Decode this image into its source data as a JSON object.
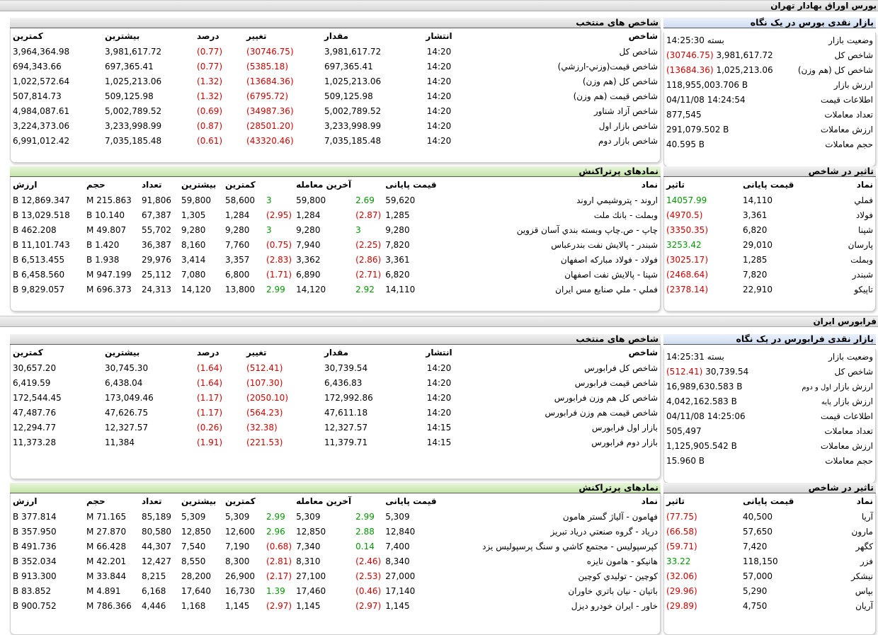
{
  "tse": {
    "title": "بورس اوراق بهادار تهران",
    "overview": {
      "title": "بازار نقدی بورس در یک نگاه",
      "rows": [
        {
          "label": "وضعیت بازار",
          "value": "بسته 14:25:30",
          "change": ""
        },
        {
          "label": "شاخص کل",
          "value": "3,981,617.72",
          "change": "(30746.75)"
        },
        {
          "label": "شاخص کل (هم وزن)",
          "value": "1,025,213.06",
          "change": "(13684.36)"
        },
        {
          "label": "ارزش بازار",
          "value": "118,955,003.706 B",
          "change": ""
        },
        {
          "label": "اطلاعات قیمت",
          "value": "04/11/08 14:24:54",
          "change": ""
        },
        {
          "label": "تعداد معاملات",
          "value": "877,545",
          "change": ""
        },
        {
          "label": "ارزش معاملات",
          "value": "291,079.502 B",
          "change": ""
        },
        {
          "label": "حجم معاملات",
          "value": "40.595 B",
          "change": ""
        }
      ]
    },
    "indices": {
      "title": "شاخص های منتخب",
      "headers": [
        "شاخص",
        "انتشار",
        "مقدار",
        "تغییر",
        "درصد",
        "بیشترین",
        "کمترین"
      ],
      "rows": [
        [
          "شاخص کل",
          "14:20",
          "3,981,617.72",
          "(30746.75)",
          "(0.77)",
          "3,981,617.72",
          "3,964,364.98"
        ],
        [
          "شاخص قیمت(وزني-ارزشي)",
          "14:20",
          "697,365.41",
          "(5385.18)",
          "(0.77)",
          "697,365.41",
          "694,343.66"
        ],
        [
          "شاخص كل (هم وزن)",
          "14:20",
          "1,025,213.06",
          "(13684.36)",
          "(1.32)",
          "1,025,213.06",
          "1,022,572.64"
        ],
        [
          "شاخص قيمت (هم وزن)",
          "14:20",
          "509,125.98",
          "(6795.72)",
          "(1.32)",
          "509,125.98",
          "507,814.73"
        ],
        [
          "شاخص آزاد شناور",
          "14:20",
          "5,002,789.52",
          "(34987.36)",
          "(0.69)",
          "5,002,789.52",
          "4,984,087.61"
        ],
        [
          "شاخص بازار اول",
          "14:20",
          "3,233,998.99",
          "(28501.20)",
          "(0.87)",
          "3,233,998.99",
          "3,224,373.06"
        ],
        [
          "شاخص بازار دوم",
          "14:20",
          "7,035,185.48",
          "(43320.46)",
          "(0.61)",
          "7,035,185.48",
          "6,991,012.42"
        ]
      ]
    },
    "impact": {
      "title": "تاثیر در شاخص",
      "headers": [
        "نماد",
        "قیمت پایانی",
        "تاثیر"
      ],
      "rows": [
        [
          "فملي",
          "14,110",
          "14057.99"
        ],
        [
          "فولاد",
          "3,361",
          "(4970.5)"
        ],
        [
          "شپنا",
          "6,820",
          "(3350.35)"
        ],
        [
          "پارسان",
          "29,010",
          "3253.42"
        ],
        [
          "وبملت",
          "1,285",
          "(3025.17)"
        ],
        [
          "شبندر",
          "7,820",
          "(2468.64)"
        ],
        [
          "تاپيكو",
          "22,910",
          "(2378.14)"
        ]
      ]
    },
    "active": {
      "title": "نمادهای پرتراکنش",
      "headers": [
        "نماد",
        "قیمت پایانی",
        "",
        "آخرین معامله",
        "",
        "کمترین",
        "بیشترین",
        "تعداد",
        "حجم",
        "ارزش"
      ],
      "rows": [
        [
          "اروند - پتروشيمي اروند",
          "59,620",
          "2.69",
          "59,800",
          "3",
          "58,600",
          "59,800",
          "91,806",
          "215.863 M",
          "12,869.347 B"
        ],
        [
          "وبملت - بانك ملت",
          "1,285",
          "(2.87)",
          "1,284",
          "(2.95)",
          "1,284",
          "1,305",
          "67,387",
          "10.140 B",
          "13,029.518 B"
        ],
        [
          "چاپ - ص.چاپ وبسته بندي آسان قزوين",
          "9,280",
          "3",
          "9,280",
          "3",
          "9,280",
          "9,280",
          "55,702",
          "49.807 M",
          "462.208 B"
        ],
        [
          "شبندر - پالايش نفت بندرعباس",
          "7,820",
          "(2.25)",
          "7,940",
          "(0.75)",
          "7,760",
          "8,160",
          "36,387",
          "1.420 B",
          "11,101.743 B"
        ],
        [
          "فولاد - فولاد مباركه اصفهان",
          "3,361",
          "(2.86)",
          "3,362",
          "(2.83)",
          "3,357",
          "3,414",
          "29,976",
          "1.938 B",
          "6,513.455 B"
        ],
        [
          "شپنا - پالايش نفت اصفهان",
          "6,820",
          "(2.71)",
          "6,890",
          "(1.71)",
          "6,800",
          "7,080",
          "25,112",
          "947.199 M",
          "6,458.560 B"
        ],
        [
          "فملي - ملي صنايع مس ايران",
          "14,110",
          "2.92",
          "14,120",
          "2.99",
          "13,800",
          "14,120",
          "24,313",
          "696.373 M",
          "9,829.057 B"
        ]
      ]
    }
  },
  "ifb": {
    "title": "فرابورس ایران",
    "overview": {
      "title": "بازار نقدی فرابورس در یک نگاه",
      "rows": [
        {
          "label": "وضعیت بازار",
          "value": "بسته 14:25:31",
          "change": ""
        },
        {
          "label": "شاخص کل",
          "value": "30,739.54",
          "change": "(512.41)"
        },
        {
          "label": "ارزش بازار",
          "label_small": "اول و دوم",
          "value": "16,989,630.583 B",
          "change": ""
        },
        {
          "label": "ارزش بازار",
          "label_small": "پایه",
          "value": "4,042,162.583 B",
          "change": ""
        },
        {
          "label": "اطلاعات قیمت",
          "value": "04/11/08 14:25:06",
          "change": ""
        },
        {
          "label": "تعداد معاملات",
          "value": "505,497",
          "change": ""
        },
        {
          "label": "ارزش معاملات",
          "value": "1,125,905.542 B",
          "change": ""
        },
        {
          "label": "حجم معاملات",
          "value": "15.960 B",
          "change": ""
        }
      ]
    },
    "indices": {
      "title": "شاخص های منتخب",
      "headers": [
        "شاخص",
        "انتشار",
        "مقدار",
        "تغییر",
        "درصد",
        "بیشترین",
        "کمترین"
      ],
      "rows": [
        [
          "شاخص كل فرابورس",
          "14:20",
          "30,739.54",
          "(512.41)",
          "(1.64)",
          "30,745.30",
          "30,657.20"
        ],
        [
          "شاخص قيمت فرابورس",
          "14:20",
          "6,436.83",
          "(107.30)",
          "(1.64)",
          "6,438.04",
          "6,419.59"
        ],
        [
          "شاخص كل هم وزن فرابورس",
          "14:20",
          "172,992.86",
          "(2050.10)",
          "(1.17)",
          "173,049.46",
          "172,544.45"
        ],
        [
          "شاخص قيمت هم وزن فرابورس",
          "14:20",
          "47,611.18",
          "(564.23)",
          "(1.17)",
          "47,626.75",
          "47,487.76"
        ],
        [
          "بازار اول فرابورس",
          "14:15",
          "12,327.57",
          "(32.38)",
          "(0.26)",
          "12,327.57",
          "12,294.77"
        ],
        [
          "بازار دوم فرابورس",
          "14:15",
          "11,379.71",
          "(221.53)",
          "(1.91)",
          "11,384",
          "11,373.28"
        ]
      ]
    },
    "impact": {
      "title": "تاثیر در شاخص",
      "headers": [
        "نماد",
        "قیمت پایانی",
        "تاثیر"
      ],
      "rows": [
        [
          "آريا",
          "40,500",
          "(77.75)"
        ],
        [
          "مارون",
          "57,650",
          "(66.58)"
        ],
        [
          "كگهر",
          "7,420",
          "(59.71)"
        ],
        [
          "فزر",
          "118,150",
          "33.22"
        ],
        [
          "نيشكر",
          "57,000",
          "(32.06)"
        ],
        [
          "بپاس",
          "5,290",
          "(29.96)"
        ],
        [
          "آريان",
          "4,750",
          "(29.89)"
        ]
      ]
    },
    "active": {
      "title": "نمادهای پرتراکنش",
      "headers": [
        "نماد",
        "قیمت پایانی",
        "",
        "آخرین معامله",
        "",
        "کمترین",
        "بیشترین",
        "تعداد",
        "حجم",
        "ارزش"
      ],
      "rows": [
        [
          "فهامون - آلياژ گستر هامون",
          "5,309",
          "2.99",
          "5,309",
          "2.99",
          "5,309",
          "5,309",
          "85,189",
          "71.165 M",
          "377.814 B"
        ],
        [
          "درياد - گروه صنعتي درياد تبريز",
          "12,840",
          "2.88",
          "12,850",
          "2.96",
          "12,600",
          "12,850",
          "80,580",
          "27.870 M",
          "357.950 B"
        ],
        [
          "كپرسپوليس - مجتمع كاشي و سنگ پرسپوليس يزد",
          "7,400",
          "0.14",
          "7,340",
          "(0.68)",
          "7,190",
          "7,540",
          "44,307",
          "66.428 M",
          "491.736 B"
        ],
        [
          "هانيكو - هامون نايزه",
          "8,340",
          "(2.46)",
          "8,310",
          "(2.81)",
          "8,300",
          "8,550",
          "12,427",
          "42.201 M",
          "352.034 B"
        ],
        [
          "كوچين - توليدي كوچين",
          "27,000",
          "(2.53)",
          "27,100",
          "(2.17)",
          "26,900",
          "28,200",
          "8,215",
          "33.844 M",
          "913.300 B"
        ],
        [
          "باتيان - نيان باتري خاوران",
          "17,140",
          "(0.46)",
          "17,460",
          "1.39",
          "16,730",
          "17,640",
          "6,168",
          "4.891 M",
          "83.852 B"
        ],
        [
          "خاور - ايران خودرو ديزل",
          "1,145",
          "(2.97)",
          "1,145",
          "(2.97)",
          "1,145",
          "1,168",
          "4,446",
          "786.366 M",
          "900.752 B"
        ]
      ]
    }
  }
}
